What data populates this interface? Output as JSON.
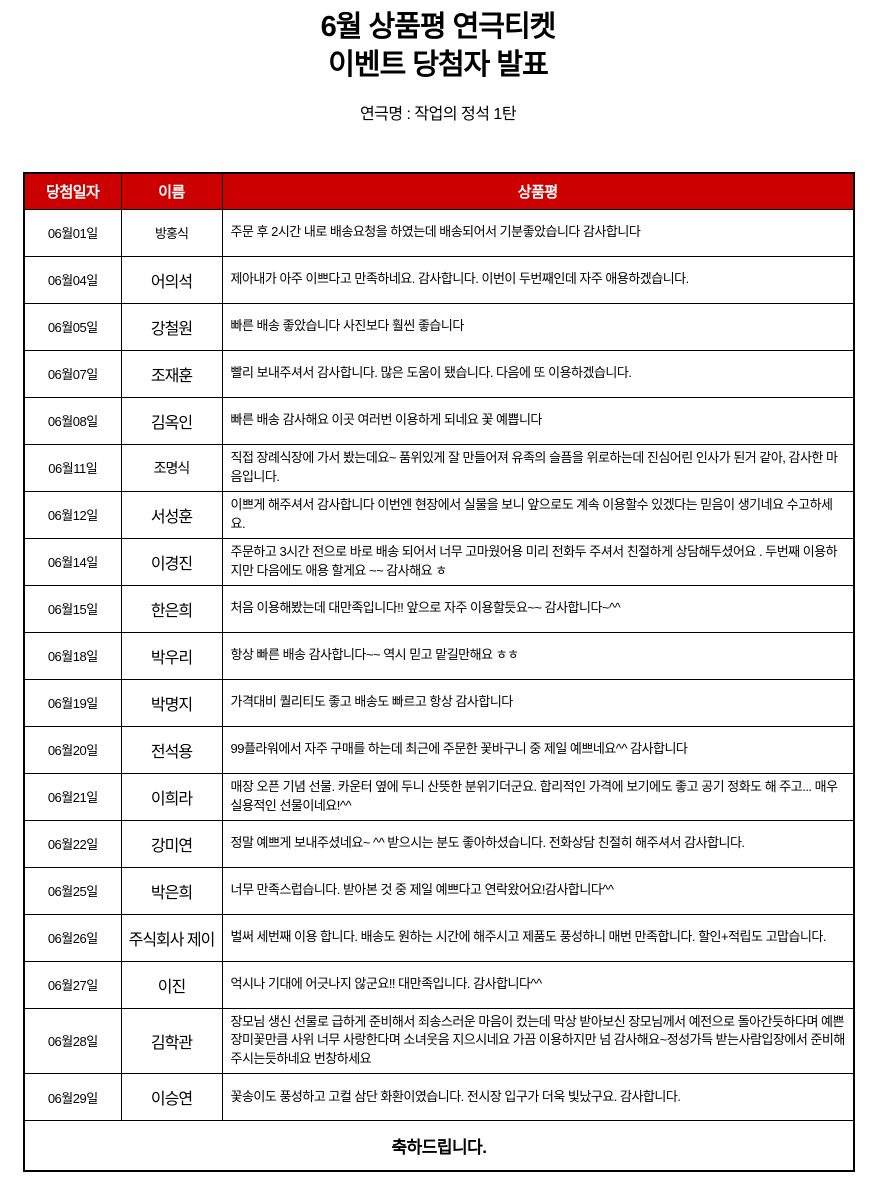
{
  "page": {
    "title_line1": "6월 상품평 연극티켓",
    "title_line2": "이벤트 당첨자 발표",
    "subtitle": "연극명 : 작업의 정석 1탄"
  },
  "colors": {
    "header_bg": "#cc0000",
    "header_text": "#ffffff",
    "border": "#000000",
    "page_bg": "#ffffff"
  },
  "table": {
    "headers": [
      "당첨일자",
      "이름",
      "상품평"
    ],
    "rows": [
      {
        "date": "06월01일",
        "name": "방홍식",
        "name_size": "sm",
        "review": "주문 후 2시간 내로 배송요청을 하였는데 배송되어서 기분좋았습니다 감사합니다"
      },
      {
        "date": "06월04일",
        "name": "어의석",
        "review": "제아내가 아주 이쁘다고 만족하네요. 감사합니다. 이번이 두번째인데 자주 애용하겠습니다."
      },
      {
        "date": "06월05일",
        "name": "강철원",
        "review": "빠른 배송 좋았습니다 사진보다 훨씬 좋습니다"
      },
      {
        "date": "06월07일",
        "name": "조재훈",
        "review": "빨리 보내주셔서 감사합니다. 많은 도움이 됐습니다. 다음에 또 이용하겠습니다."
      },
      {
        "date": "06월08일",
        "name": "김옥인",
        "review": "빠른 배송 감사해요 이곳 여러번 이용하게 되네요 꽃 예쁩니다"
      },
      {
        "date": "06월11일",
        "name": "조명식",
        "name_size": "md",
        "review": "직접 장례식장에 가서 봤는데요~ 품위있게 잘 만들어져 유족의 슬픔을 위로하는데 진심어린 인사가 된거 같아, 감사한 마음입니다."
      },
      {
        "date": "06월12일",
        "name": "서성훈",
        "review": "이쁘게 해주셔서 감사합니다 이번엔 현장에서 실물을 보니 앞으로도 계속 이용할수 있겠다는 믿음이 생기네요 수고하세요."
      },
      {
        "date": "06월14일",
        "name": "이경진",
        "review": "주문하고 3시간 전으로 바로 배송 되어서 너무 고마웠어용 미리 전화두 주셔서 친절하게 상담해두셨어요 . 두번째 이용하지만 다음에도 애용 할게요 ~~ 감사해요 ㅎ"
      },
      {
        "date": "06월15일",
        "name": "한은희",
        "review": "처음 이용해봤는데 대만족입니다!! 앞으로 자주 이용할듯요~~ 감사합니다~^^"
      },
      {
        "date": "06월18일",
        "name": "박우리",
        "review": "항상 빠른 배송 감사합니다~~ 역시 믿고 맡길만해요 ㅎㅎ"
      },
      {
        "date": "06월19일",
        "name": "박명지",
        "review": "가격대비 퀄리티도 좋고 배송도 빠르고 항상 감사합니다"
      },
      {
        "date": "06월20일",
        "name": "전석용",
        "review": "99플라워에서 자주 구매를 하는데 최근에 주문한 꽃바구니 중 제일 예쁘네요^^ 감사합니다"
      },
      {
        "date": "06월21일",
        "name": "이희라",
        "review": "매장 오픈 기념 선물. 카운터 옆에 두니 산뜻한 분위기더군요. 합리적인 가격에 보기에도 좋고 공기 정화도 해 주고... 매우 실용적인 선물이네요!^^"
      },
      {
        "date": "06월22일",
        "name": "강미연",
        "review": "정말 예쁘게 보내주셨네요~ ^^ 받으시는 분도 좋아하셨습니다. 전화상담 친절히 해주셔서 감사합니다."
      },
      {
        "date": "06월25일",
        "name": "박은희",
        "review": "너무 만족스럽습니다. 받아본 것 중 제일 예쁘다고 연락왔어요!감사합니다^^"
      },
      {
        "date": "06월26일",
        "name": "주식회사 제이",
        "review": "벌써 세번째 이용 합니다. 배송도 원하는 시간에 해주시고 제품도 풍성하니 매번 만족합니다. 할인+적립도 고맙습니다."
      },
      {
        "date": "06월27일",
        "name": "이진",
        "review": "억시나 기대에 어긋나지 않군요!! 대만족입니다. 감사합니다^^"
      },
      {
        "date": "06월28일",
        "name": "김학관",
        "review": "장모님 생신 선물로 급하게 준비해서 죄송스러운 마음이 컸는데 막상 받아보신 장모님께서 예전으로 돌아간듯하다며 예쁜 장미꽃만큼 사위 너무 사랑한다며 소녀웃음 지으시네요 가끔 이용하지만 넘 감사해요~정성가득 받는사람입장에서 준비해주시는듯하네요 번창하세요"
      },
      {
        "date": "06월29일",
        "name": "이승연",
        "review": "꽃송이도 풍성하고 고컬 삼단 화환이였습니다. 전시장 입구가 더욱 빛났구요. 감사합니다."
      }
    ],
    "footer": "축하드립니다."
  }
}
